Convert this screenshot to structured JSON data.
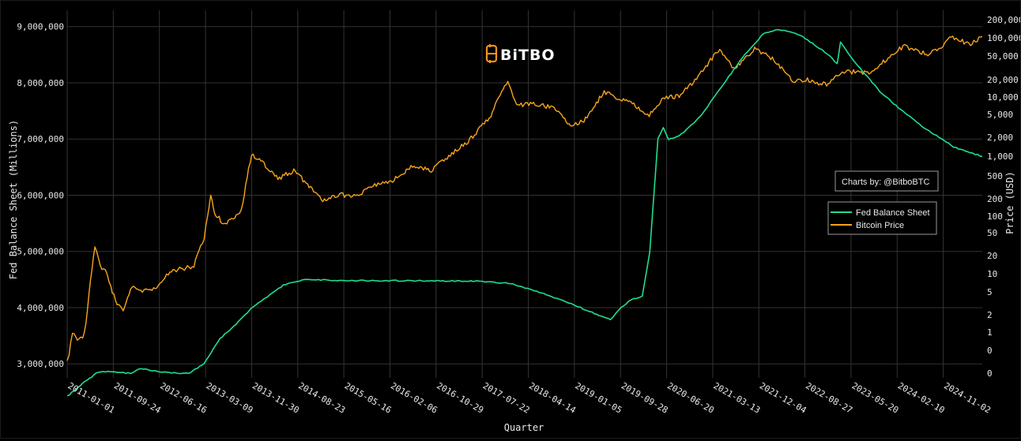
{
  "logo": {
    "text": "BiTBO"
  },
  "credit": "Charts by: @BitboBTC",
  "colors": {
    "fed": "#1fdf8f",
    "btc": "#f7a51c",
    "grid": "#333333",
    "background": "#000000"
  },
  "chart_data": {
    "type": "line",
    "title": "",
    "xlabel": "Quarter",
    "ylabel_left": "Fed Balance Sheet (Millions)",
    "ylabel_right": "Price (USD)",
    "right_axis_scale": "log",
    "grid": true,
    "legend_position": "right",
    "x_range": [
      "2011-01-01",
      "2025-06-15"
    ],
    "y_left_range": [
      2750000,
      9150000
    ],
    "x_ticks": [
      "2011-01-01",
      "2011-09-24",
      "2012-06-16",
      "2013-03-09",
      "2013-11-30",
      "2014-08-23",
      "2015-05-16",
      "2016-02-06",
      "2016-10-29",
      "2017-07-22",
      "2018-04-14",
      "2019-01-05",
      "2019-09-28",
      "2020-06-20",
      "2021-03-13",
      "2021-12-04",
      "2022-08-27",
      "2023-05-20",
      "2024-02-10",
      "2024-11-02"
    ],
    "y_left_ticks": [
      "3,000,000",
      "4,000,000",
      "5,000,000",
      "6,000,000",
      "7,000,000",
      "8,000,000",
      "9,000,000"
    ],
    "y_left_tick_values": [
      3000000,
      4000000,
      5000000,
      6000000,
      7000000,
      8000000,
      9000000
    ],
    "y_right_ticks": [
      {
        "label": "200,000",
        "value": 200000
      },
      {
        "label": "100,000",
        "value": 100000
      },
      {
        "label": "50,000",
        "value": 50000
      },
      {
        "label": "20,000",
        "value": 20000
      },
      {
        "label": "10,000",
        "value": 10000
      },
      {
        "label": "5,000",
        "value": 5000
      },
      {
        "label": "2,000",
        "value": 2000
      },
      {
        "label": "1,000",
        "value": 1000
      },
      {
        "label": "500",
        "value": 500
      },
      {
        "label": "200",
        "value": 200
      },
      {
        "label": "100",
        "value": 100
      },
      {
        "label": "50",
        "value": 50
      },
      {
        "label": "20",
        "value": 20
      },
      {
        "label": "10",
        "value": 10
      },
      {
        "label": "5",
        "value": 5
      },
      {
        "label": "2",
        "value": 2
      },
      {
        "label": "1",
        "value": 1
      },
      {
        "label": "0",
        "value": 0.5
      },
      {
        "label": "0",
        "value": 0.2
      }
    ],
    "series": [
      {
        "name": "Fed Balance Sheet",
        "axis": "left",
        "points": [
          [
            "2011-01-01",
            2420000
          ],
          [
            "2011-04-01",
            2650000
          ],
          [
            "2011-07-01",
            2860000
          ],
          [
            "2011-10-01",
            2860000
          ],
          [
            "2012-01-01",
            2830000
          ],
          [
            "2012-03-01",
            2920000
          ],
          [
            "2012-07-01",
            2850000
          ],
          [
            "2012-12-01",
            2830000
          ],
          [
            "2013-03-01",
            3000000
          ],
          [
            "2013-06-01",
            3450000
          ],
          [
            "2013-09-01",
            3700000
          ],
          [
            "2013-12-01",
            4000000
          ],
          [
            "2014-03-01",
            4200000
          ],
          [
            "2014-06-01",
            4400000
          ],
          [
            "2014-10-01",
            4500000
          ],
          [
            "2015-06-01",
            4480000
          ],
          [
            "2016-06-01",
            4480000
          ],
          [
            "2017-06-01",
            4470000
          ],
          [
            "2018-01-01",
            4430000
          ],
          [
            "2018-07-01",
            4260000
          ],
          [
            "2019-01-01",
            4050000
          ],
          [
            "2019-08-01",
            3780000
          ],
          [
            "2019-10-01",
            4000000
          ],
          [
            "2019-12-01",
            4150000
          ],
          [
            "2020-02-01",
            4200000
          ],
          [
            "2020-03-15",
            5000000
          ],
          [
            "2020-05-01",
            7000000
          ],
          [
            "2020-06-01",
            7200000
          ],
          [
            "2020-07-01",
            6990000
          ],
          [
            "2020-09-01",
            7050000
          ],
          [
            "2021-01-01",
            7400000
          ],
          [
            "2021-06-01",
            8050000
          ],
          [
            "2021-09-01",
            8450000
          ],
          [
            "2022-01-01",
            8880000
          ],
          [
            "2022-04-01",
            8950000
          ],
          [
            "2022-08-01",
            8850000
          ],
          [
            "2023-01-01",
            8520000
          ],
          [
            "2023-03-01",
            8340000
          ],
          [
            "2023-03-20",
            8730000
          ],
          [
            "2023-06-01",
            8400000
          ],
          [
            "2023-11-01",
            7850000
          ],
          [
            "2024-03-01",
            7520000
          ],
          [
            "2024-07-01",
            7230000
          ],
          [
            "2025-01-01",
            6860000
          ],
          [
            "2025-06-15",
            6690000
          ]
        ]
      },
      {
        "name": "Bitcoin Price",
        "axis": "right",
        "points": [
          [
            "2011-01-01",
            0.3
          ],
          [
            "2011-02-01",
            0.9
          ],
          [
            "2011-03-01",
            0.8
          ],
          [
            "2011-04-01",
            0.8
          ],
          [
            "2011-04-20",
            1.5
          ],
          [
            "2011-05-15",
            8
          ],
          [
            "2011-06-10",
            28
          ],
          [
            "2011-07-10",
            14
          ],
          [
            "2011-08-10",
            11
          ],
          [
            "2011-09-10",
            6
          ],
          [
            "2011-10-15",
            3
          ],
          [
            "2011-11-20",
            2.4
          ],
          [
            "2012-01-10",
            6.5
          ],
          [
            "2012-03-01",
            5
          ],
          [
            "2012-06-01",
            5.8
          ],
          [
            "2012-08-15",
            11
          ],
          [
            "2012-10-20",
            12
          ],
          [
            "2013-01-01",
            13.5
          ],
          [
            "2013-03-01",
            40
          ],
          [
            "2013-04-08",
            230
          ],
          [
            "2013-05-01",
            110
          ],
          [
            "2013-07-01",
            70
          ],
          [
            "2013-10-01",
            125
          ],
          [
            "2013-11-30",
            1100
          ],
          [
            "2014-02-01",
            800
          ],
          [
            "2014-05-01",
            450
          ],
          [
            "2014-08-01",
            600
          ],
          [
            "2014-10-01",
            400
          ],
          [
            "2015-01-15",
            180
          ],
          [
            "2015-05-01",
            235
          ],
          [
            "2015-08-01",
            220
          ],
          [
            "2015-11-01",
            330
          ],
          [
            "2016-03-01",
            430
          ],
          [
            "2016-06-15",
            700
          ],
          [
            "2016-10-01",
            610
          ],
          [
            "2017-01-01",
            970
          ],
          [
            "2017-05-01",
            1700
          ],
          [
            "2017-09-01",
            4300
          ],
          [
            "2017-12-17",
            19500
          ],
          [
            "2018-02-05",
            7200
          ],
          [
            "2018-06-01",
            7500
          ],
          [
            "2018-09-01",
            6500
          ],
          [
            "2018-12-15",
            3300
          ],
          [
            "2019-03-01",
            3900
          ],
          [
            "2019-06-26",
            12500
          ],
          [
            "2019-09-01",
            10000
          ],
          [
            "2019-12-15",
            7200
          ],
          [
            "2020-03-12",
            4900
          ],
          [
            "2020-06-01",
            9500
          ],
          [
            "2020-09-01",
            10500
          ],
          [
            "2020-12-01",
            19000
          ],
          [
            "2021-04-14",
            63000
          ],
          [
            "2021-07-20",
            30000
          ],
          [
            "2021-11-10",
            67000
          ],
          [
            "2022-03-01",
            43000
          ],
          [
            "2022-06-18",
            19000
          ],
          [
            "2022-09-01",
            20000
          ],
          [
            "2022-12-30",
            16500
          ],
          [
            "2023-04-01",
            28000
          ],
          [
            "2023-09-01",
            26000
          ],
          [
            "2023-12-01",
            42000
          ],
          [
            "2024-03-14",
            72000
          ],
          [
            "2024-08-05",
            54000
          ],
          [
            "2024-11-01",
            70000
          ],
          [
            "2024-12-17",
            106000
          ],
          [
            "2025-04-08",
            76000
          ],
          [
            "2025-06-15",
            105000
          ]
        ]
      }
    ]
  }
}
